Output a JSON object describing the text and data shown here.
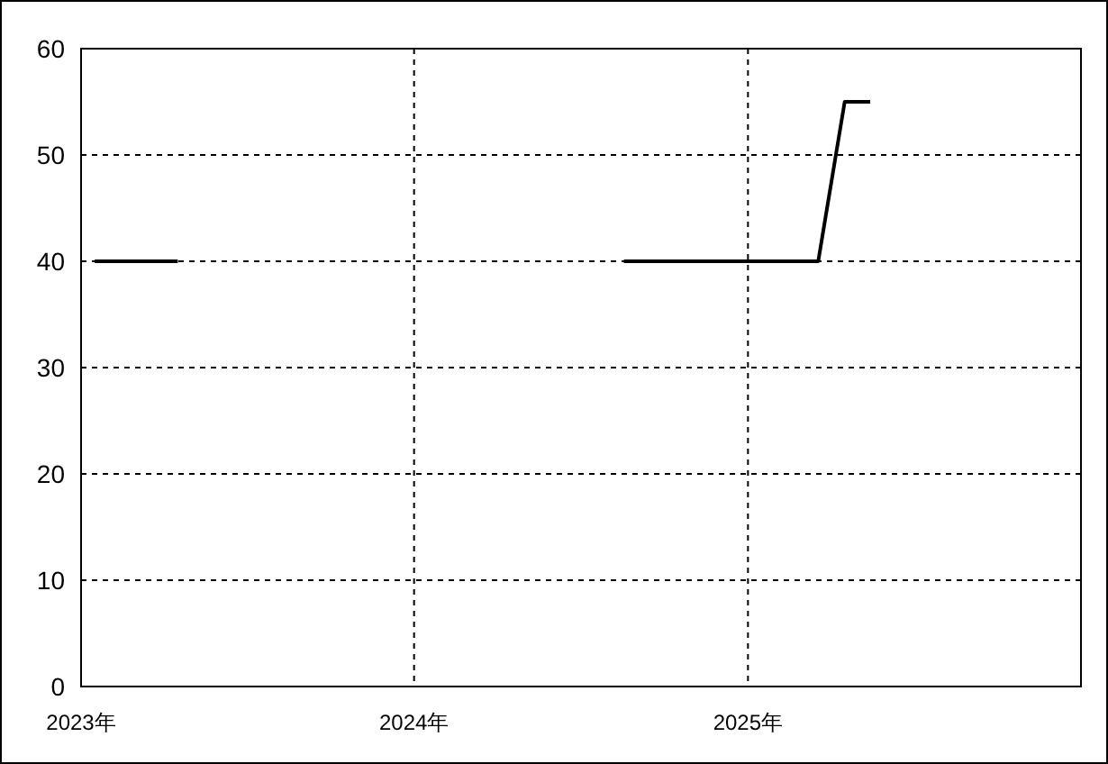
{
  "chart_data": {
    "type": "line",
    "series": [
      {
        "color": "#000000",
        "x": [
          "2023-01-16",
          "2023-04-17"
        ],
        "values": [
          40,
          40
        ]
      },
      {
        "color": "#000000",
        "x": [
          "2024-08-18",
          "2025-03-19",
          "2025-04-17",
          "2025-05-15"
        ],
        "values": [
          40,
          40,
          55,
          55
        ]
      }
    ],
    "xlim": [
      "2023",
      "2026"
    ],
    "xticks": [
      {
        "value": "2023",
        "label": "2023年"
      },
      {
        "value": "2024",
        "label": "2024年"
      },
      {
        "value": "2025",
        "label": "2025年"
      }
    ],
    "ylim": [
      0,
      60
    ],
    "yticks": [
      0,
      10,
      20,
      30,
      40,
      50,
      60
    ],
    "grid": true,
    "line_style": "solid",
    "marker": "none"
  }
}
